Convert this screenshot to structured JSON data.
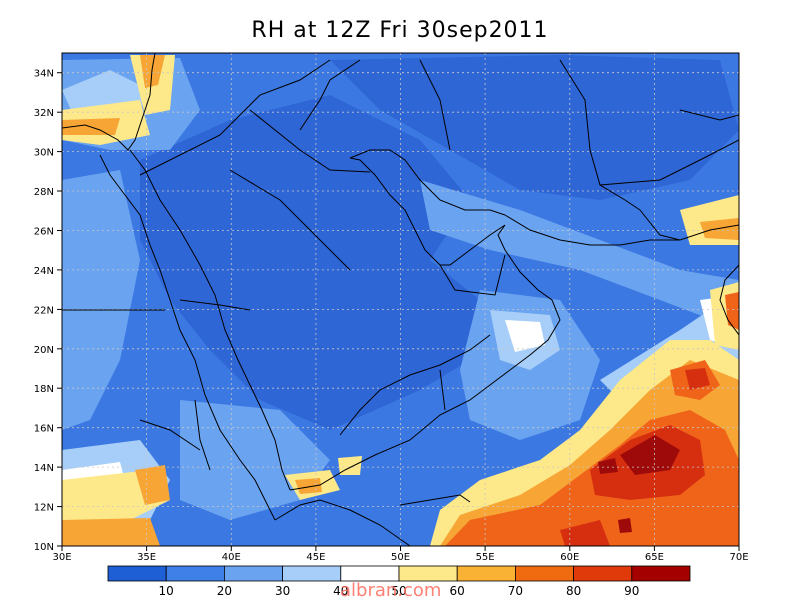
{
  "title": "RH at 12Z Fri 30sep2011",
  "watermark": "albran.com",
  "map": {
    "lon_range": [
      30,
      70
    ],
    "lat_range": [
      10,
      35
    ],
    "x_ticks": [
      "30E",
      "35E",
      "40E",
      "45E",
      "50E",
      "55E",
      "60E",
      "65E",
      "70E"
    ],
    "y_ticks": [
      "10N",
      "12N",
      "14N",
      "16N",
      "18N",
      "20N",
      "22N",
      "24N",
      "26N",
      "28N",
      "30N",
      "32N",
      "34N"
    ],
    "grid": "dotted"
  },
  "colorbar": {
    "labels": [
      "10",
      "20",
      "30",
      "40",
      "50",
      "60",
      "70",
      "80",
      "90"
    ],
    "colors": [
      "#1f5fd6",
      "#3f7fe8",
      "#6aa3f0",
      "#a6cef8",
      "#ffffff",
      "#fde98a",
      "#f9b233",
      "#f06a10",
      "#e03a0a",
      "#a50000"
    ]
  },
  "palette": {
    "deep_blue": "#2f6ad9",
    "mid_blue": "#4a86e8",
    "light_blue": "#7fb1f2",
    "pale_blue": "#b9dafa",
    "white": "#ffffff",
    "yellow": "#fde98a",
    "orange": "#f7a535",
    "red_orange": "#f0641a",
    "red": "#d62f10",
    "dark_red": "#9e0a0a"
  }
}
